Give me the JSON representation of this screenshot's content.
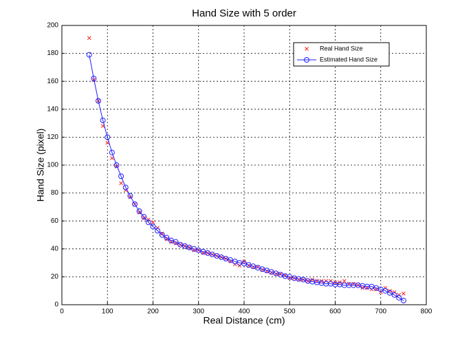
{
  "chart_data": {
    "type": "line",
    "title": "Hand Size with 5 order",
    "x_label": "Real Distance (cm)",
    "y_label": "Hand Size (pixel)",
    "x": [
      60,
      70,
      80,
      90,
      100,
      110,
      120,
      130,
      140,
      150,
      160,
      170,
      180,
      190,
      200,
      210,
      220,
      230,
      240,
      250,
      260,
      270,
      280,
      290,
      300,
      310,
      320,
      330,
      340,
      350,
      360,
      370,
      380,
      390,
      400,
      410,
      420,
      430,
      440,
      450,
      460,
      470,
      480,
      490,
      500,
      510,
      520,
      530,
      540,
      550,
      560,
      570,
      580,
      590,
      600,
      610,
      620,
      630,
      640,
      650,
      660,
      670,
      680,
      690,
      700,
      710,
      720,
      730,
      740,
      750
    ],
    "series": [
      {
        "name": "Real Hand Size",
        "color": "#ff2020",
        "marker": "x",
        "linestyle": "none",
        "values": [
          191,
          161,
          146,
          128,
          116,
          105,
          99,
          87,
          82,
          77,
          72,
          66,
          62,
          61,
          59,
          55,
          51,
          47,
          45,
          44,
          43,
          42,
          41,
          39,
          39,
          37,
          37,
          36,
          35,
          34,
          33,
          31,
          29,
          28,
          31,
          28,
          27,
          27,
          25,
          24,
          23,
          22,
          22,
          21,
          19,
          19,
          18,
          18,
          17,
          18,
          17,
          17,
          17,
          17,
          16,
          16,
          17,
          15,
          15,
          14,
          12,
          12,
          11,
          11,
          9,
          12,
          10,
          9,
          7,
          8
        ]
      },
      {
        "name": "Estimated Hand Size",
        "color": "#2020ff",
        "marker": "o",
        "linestyle": "solid",
        "values": [
          179,
          162,
          146,
          132,
          120,
          109,
          100,
          92,
          84,
          78,
          72,
          67,
          63,
          59,
          56,
          53,
          50,
          48,
          46,
          45,
          43,
          42,
          41,
          40,
          39,
          38,
          37,
          36,
          35,
          34,
          33,
          32,
          31,
          30,
          29.5,
          28.5,
          27.5,
          26.5,
          25.5,
          24.5,
          23.5,
          22.5,
          21.5,
          20.5,
          20,
          19,
          18.5,
          18,
          17,
          16.5,
          16,
          15.5,
          15,
          15,
          14.5,
          14.5,
          14,
          14,
          14,
          14,
          13.5,
          13,
          13,
          12,
          11,
          10,
          8.5,
          7,
          5,
          3
        ]
      }
    ],
    "xlim": [
      0,
      800
    ],
    "xticks": [
      0,
      100,
      200,
      300,
      400,
      500,
      600,
      700,
      800
    ],
    "ylim": [
      0,
      200
    ],
    "yticks": [
      0,
      20,
      40,
      60,
      80,
      100,
      120,
      140,
      160,
      180,
      200
    ],
    "grid": true,
    "legend": "upper-right"
  }
}
